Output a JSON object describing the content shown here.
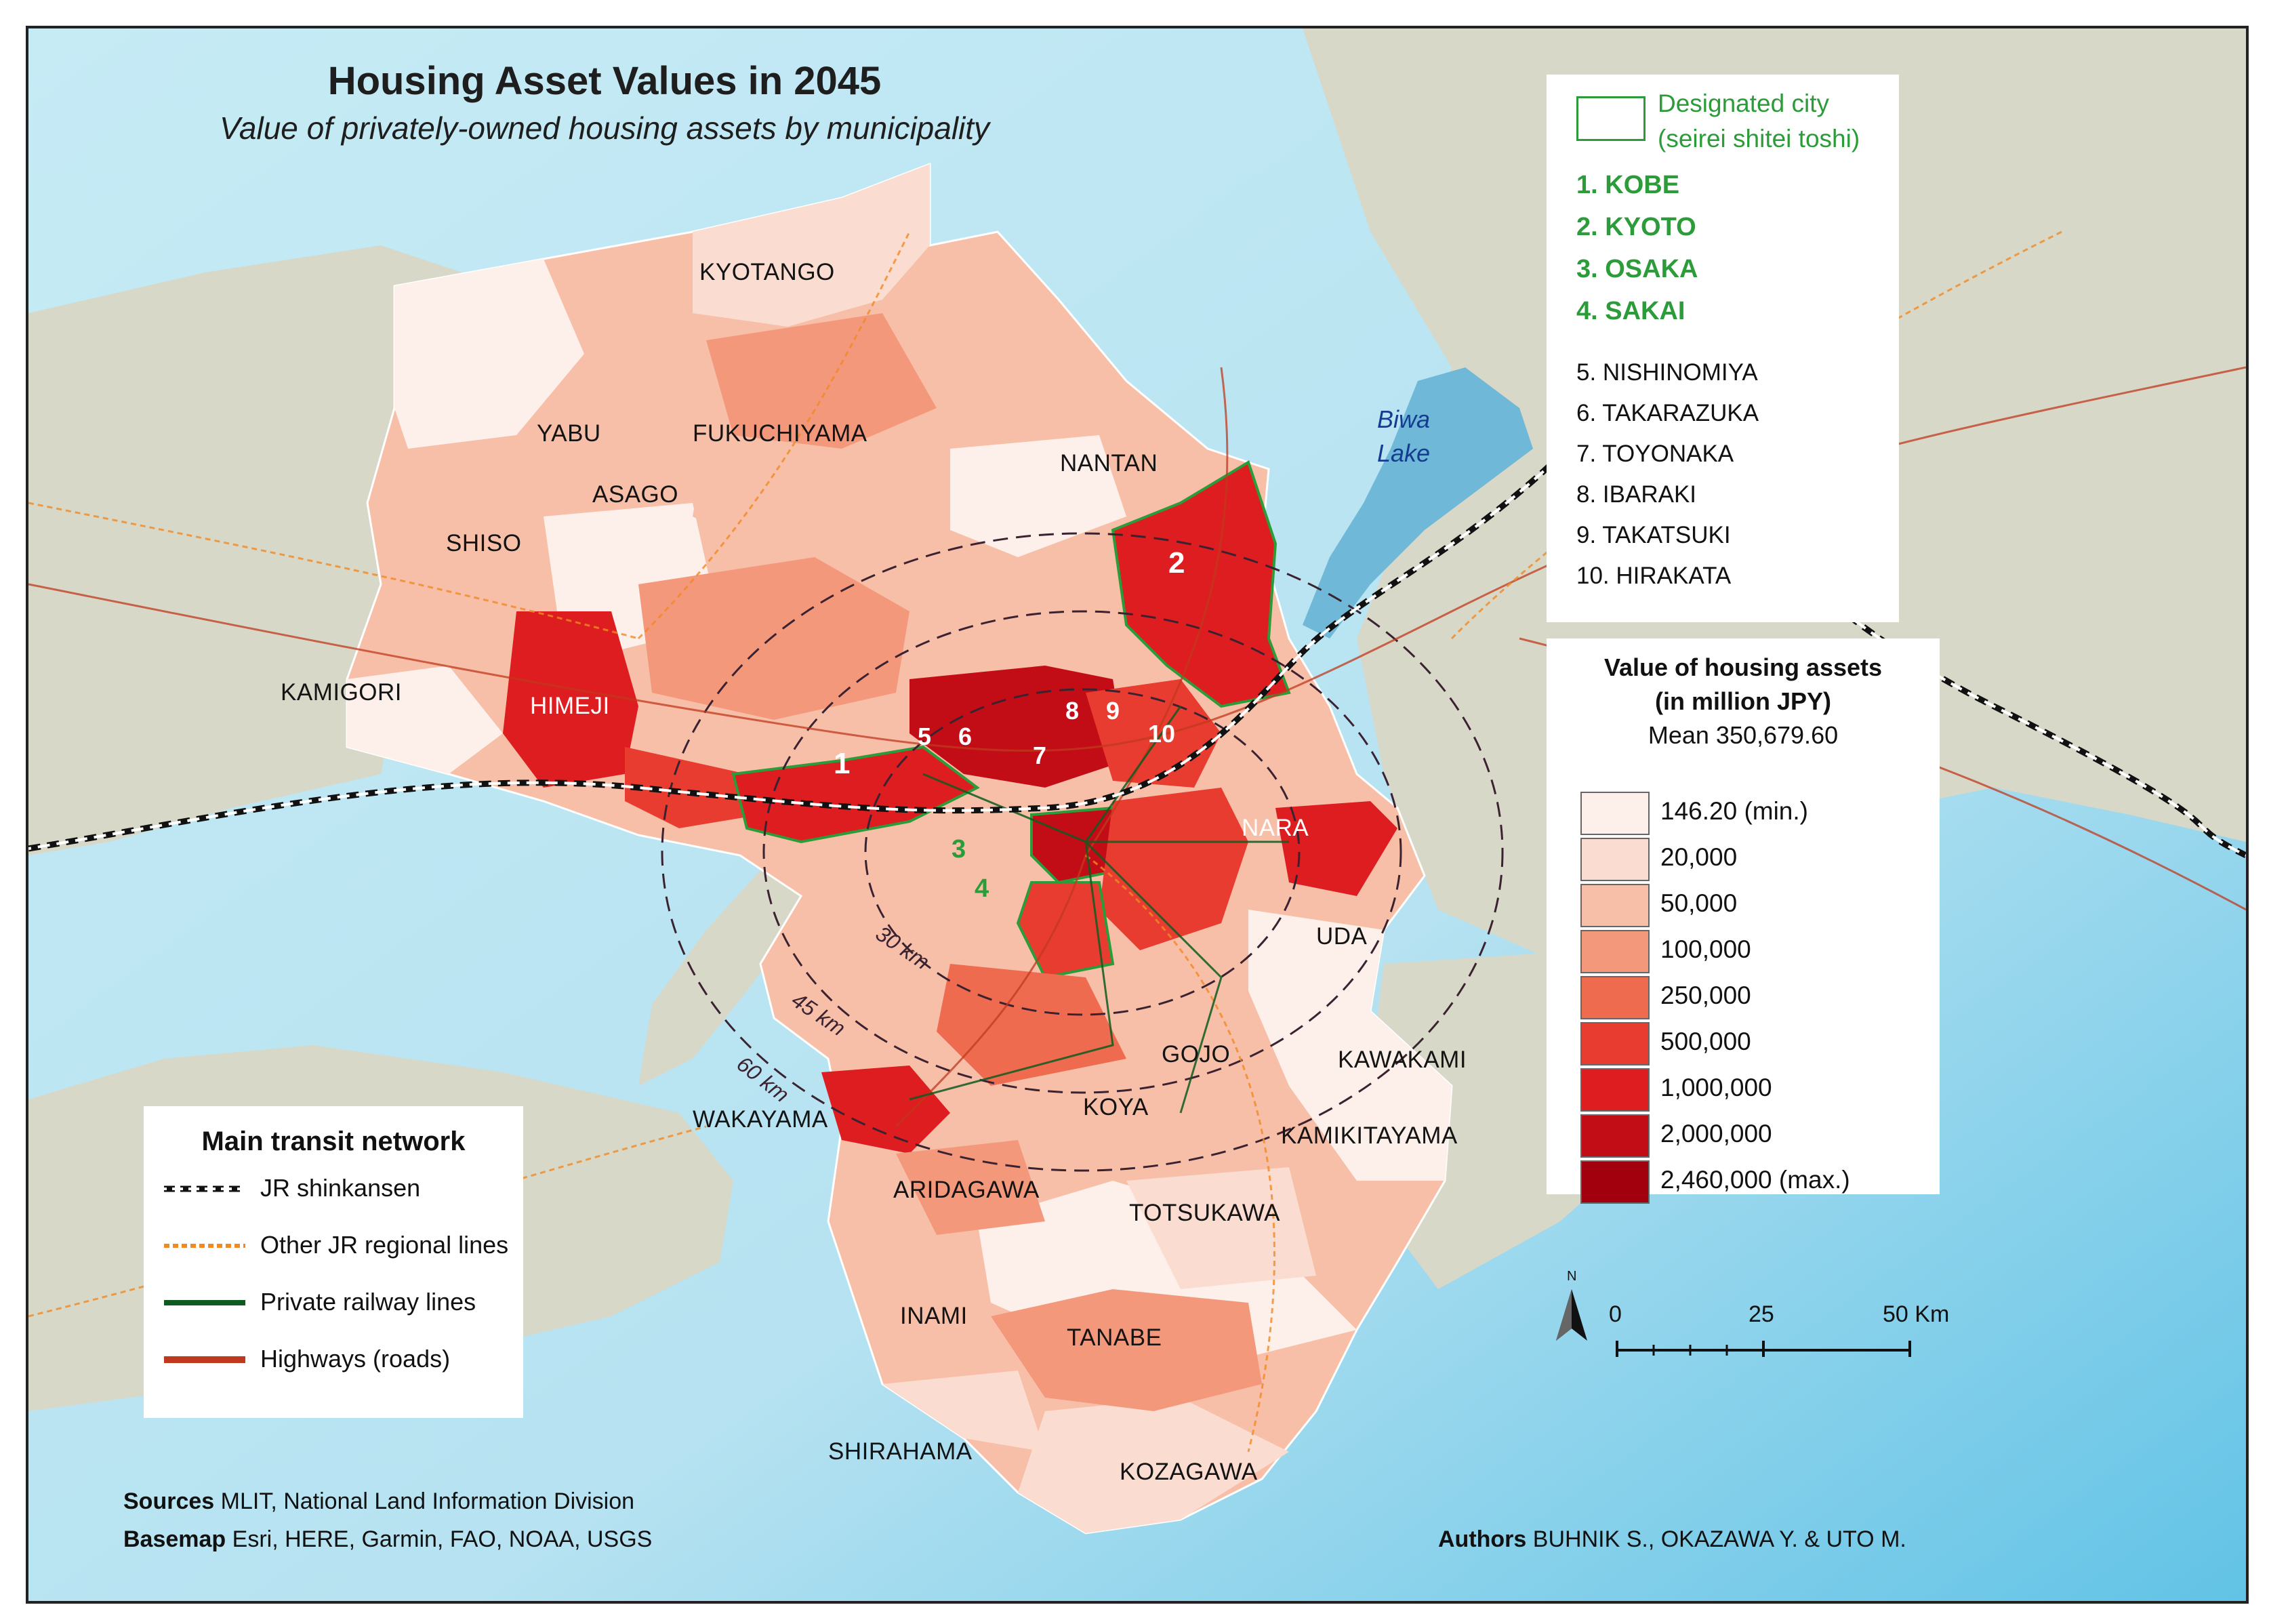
{
  "title": "Housing Asset Values in 2045",
  "subtitle": "Value of privately-owned housing assets by municipality",
  "colors": {
    "sea": "#bfe6f2",
    "land": "#d8d8c8",
    "lake": "#6fb8d8",
    "designated_border": "#2c9c3a",
    "shinkansen": "#111111",
    "jr_regional": "#f08a24",
    "private_rail": "#0f5a20",
    "highway": "#c0391e"
  },
  "designated_cities": {
    "header_line1": "Designated city",
    "header_line2": "(seirei shitei toshi)",
    "items": [
      "1. KOBE",
      "2. KYOTO",
      "3. OSAKA",
      "4. SAKAI"
    ]
  },
  "other_cities": [
    "5. NISHINOMIYA",
    "6. TAKARAZUKA",
    "7. TOYONAKA",
    "8. IBARAKI",
    "9. TAKATSUKI",
    "10. HIRAKATA"
  ],
  "value_legend": {
    "title_line1": "Value of housing assets",
    "title_line2": "(in million JPY)",
    "mean": "Mean 350,679.60",
    "classes": [
      {
        "label": "146.20 (min.)",
        "color": "#fdf0ea"
      },
      {
        "label": "20,000",
        "color": "#fbdcd0"
      },
      {
        "label": "50,000",
        "color": "#f8bfa8"
      },
      {
        "label": "100,000",
        "color": "#f4987c"
      },
      {
        "label": "250,000",
        "color": "#ef6b50"
      },
      {
        "label": "500,000",
        "color": "#e73c2f"
      },
      {
        "label": "1,000,000",
        "color": "#dd1d1f"
      },
      {
        "label": "2,000,000",
        "color": "#c30d16"
      },
      {
        "label": "2,460,000 (max.)",
        "color": "#a3000e"
      }
    ]
  },
  "transit_legend": {
    "title": "Main transit network",
    "items": [
      {
        "label": "JR shinkansen",
        "icon": "shinkansen-line-icon"
      },
      {
        "label": "Other JR regional lines",
        "icon": "jr-regional-line-icon"
      },
      {
        "label": "Private railway lines",
        "icon": "private-railway-line-icon"
      },
      {
        "label": "Highways (roads)",
        "icon": "highway-line-icon"
      }
    ]
  },
  "scale_bar": {
    "north": "N",
    "ticks": [
      "0",
      "25",
      "50 Km"
    ]
  },
  "rings": [
    "30 km",
    "45 km",
    "60 km"
  ],
  "place_labels": {
    "kyotango": "KYOTANGO",
    "yabu": "YABU",
    "fukuchiyama": "FUKUCHIYAMA",
    "nantan": "NANTAN",
    "asago": "ASAGO",
    "shiso": "SHISO",
    "kamigori": "KAMIGORI",
    "himeji": "HIMEJI",
    "nara": "NARA",
    "uda": "UDA",
    "gojo": "GOJO",
    "kawakami": "KAWAKAMI",
    "koya": "KOYA",
    "kamikitayama": "KAMIKITAYAMA",
    "wakayama": "WAKAYAMA",
    "aridagawa": "ARIDAGAWA",
    "totsukawa": "TOTSUKAWA",
    "inami": "INAMI",
    "tanabe": "TANABE",
    "shirahama": "SHIRAHAMA",
    "kozagawa": "KOZAGAWA"
  },
  "lake": {
    "line1": "Biwa",
    "line2": "Lake"
  },
  "city_numbers": {
    "n1": "1",
    "n2": "2",
    "n3": "3",
    "n4": "4",
    "n5": "5",
    "n6": "6",
    "n7": "7",
    "n8": "8",
    "n9": "9",
    "n10": "10"
  },
  "sources": {
    "label": "Sources",
    "text": "MLIT, National Land Information Division"
  },
  "basemap": {
    "label": "Basemap",
    "text": "Esri, HERE, Garmin, FAO, NOAA, USGS"
  },
  "authors": {
    "label": "Authors",
    "text": "BUHNIK S., OKAZAWA Y. & UTO M."
  }
}
